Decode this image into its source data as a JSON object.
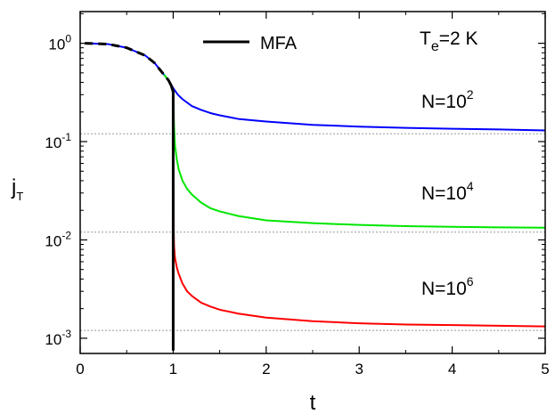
{
  "chart_data": {
    "type": "line",
    "title": "",
    "xlabel": "t",
    "ylabel": {
      "main": "j",
      "sub": "T"
    },
    "xlim": [
      0,
      5
    ],
    "ylim": [
      0.0007,
      2.1
    ],
    "yscale": "log",
    "grid": false,
    "x_ticks": [
      "0",
      "1",
      "2",
      "3",
      "4",
      "5"
    ],
    "y_ticks": [
      {
        "base": "10",
        "exp": "0",
        "value": 1
      },
      {
        "base": "10",
        "exp": "-1",
        "value": 0.1
      },
      {
        "base": "10",
        "exp": "-2",
        "value": 0.01
      },
      {
        "base": "10",
        "exp": "-3",
        "value": 0.001
      }
    ],
    "reference_lines": [
      {
        "y": 0.12
      },
      {
        "y": 0.012
      },
      {
        "y": 0.0012
      }
    ],
    "legend": {
      "placement": "top-center",
      "entries": [
        {
          "label": "MFA",
          "color": "#000000"
        }
      ]
    },
    "annotations": {
      "temperature": {
        "pre": "T",
        "sub": "e",
        "post": "=2 K"
      },
      "n_labels": [
        {
          "pre": "N=10",
          "exp": "2"
        },
        {
          "pre": "N=10",
          "exp": "4"
        },
        {
          "pre": "N=10",
          "exp": "6"
        }
      ]
    },
    "series": [
      {
        "color": "#0000ff",
        "x": [
          0.05,
          0.3,
          0.5,
          0.7,
          0.8,
          0.9,
          0.95,
          1.0,
          1.05,
          1.1,
          1.2,
          1.3,
          1.4,
          1.5,
          1.7,
          2.0,
          2.5,
          3.0,
          3.5,
          4.0,
          4.5,
          5.0
        ],
        "y": [
          1.0,
          0.98,
          0.9,
          0.75,
          0.63,
          0.48,
          0.42,
          0.35,
          0.3,
          0.27,
          0.23,
          0.21,
          0.195,
          0.185,
          0.17,
          0.16,
          0.148,
          0.142,
          0.138,
          0.135,
          0.133,
          0.13
        ]
      },
      {
        "color": "#00e600",
        "x": [
          0.9,
          0.95,
          0.98,
          1.0,
          1.005,
          1.01,
          1.02,
          1.04,
          1.06,
          1.1,
          1.15,
          1.2,
          1.3,
          1.4,
          1.5,
          1.7,
          2.0,
          2.5,
          3.0,
          3.5,
          4.0,
          4.5,
          5.0
        ],
        "y": [
          0.48,
          0.42,
          0.37,
          0.32,
          0.2,
          0.14,
          0.09,
          0.065,
          0.052,
          0.04,
          0.033,
          0.029,
          0.024,
          0.021,
          0.0195,
          0.0175,
          0.0158,
          0.0148,
          0.0142,
          0.0138,
          0.0136,
          0.0134,
          0.0133
        ]
      },
      {
        "color": "#ff0000",
        "x": [
          1.0,
          1.001,
          1.003,
          1.006,
          1.01,
          1.02,
          1.04,
          1.06,
          1.1,
          1.15,
          1.2,
          1.3,
          1.4,
          1.5,
          1.7,
          2.0,
          2.5,
          3.0,
          3.5,
          4.0,
          4.5,
          5.0
        ],
        "y": [
          0.1,
          0.05,
          0.02,
          0.012,
          0.0085,
          0.0065,
          0.0052,
          0.0045,
          0.0036,
          0.003,
          0.0027,
          0.0023,
          0.0021,
          0.00195,
          0.00178,
          0.00162,
          0.00149,
          0.00142,
          0.00138,
          0.00136,
          0.00134,
          0.00132
        ]
      },
      {
        "name": "MFA",
        "color": "#000000",
        "dashed_until": 0.97,
        "x": [
          0.05,
          0.3,
          0.5,
          0.7,
          0.8,
          0.9,
          0.95,
          0.98,
          1.0,
          1.0
        ],
        "y": [
          1.0,
          0.98,
          0.9,
          0.75,
          0.63,
          0.48,
          0.42,
          0.37,
          0.32,
          0.00075
        ]
      }
    ]
  }
}
